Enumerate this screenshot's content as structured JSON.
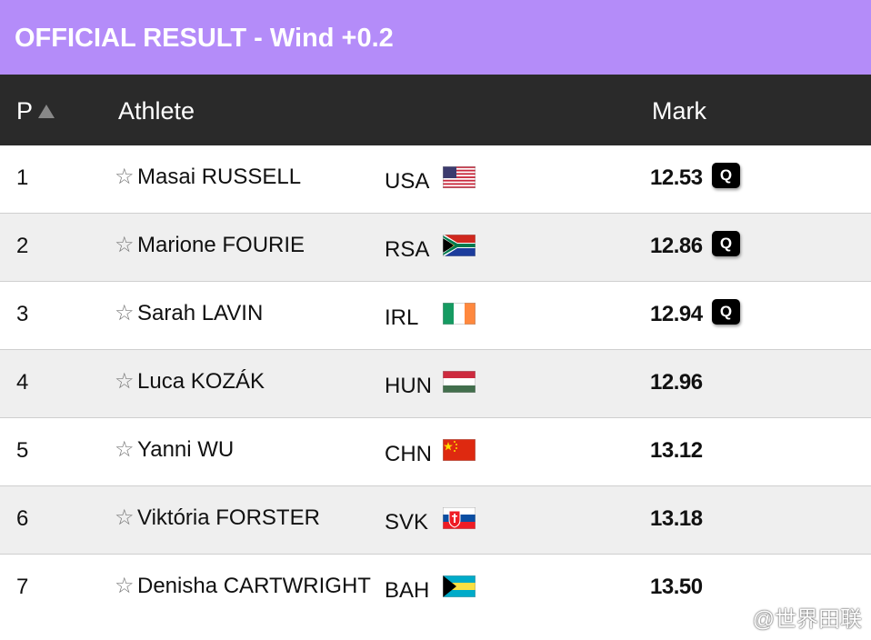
{
  "header": {
    "title": "OFFICIAL RESULT - Wind +0.2"
  },
  "table": {
    "columns": [
      "P",
      "Athlete",
      "Mark"
    ],
    "rows": [
      {
        "place": "1",
        "athlete": "Masai RUSSELL",
        "country": "USA",
        "mark": "12.53",
        "qualifier": "Q"
      },
      {
        "place": "2",
        "athlete": "Marione FOURIE",
        "country": "RSA",
        "mark": "12.86",
        "qualifier": "Q"
      },
      {
        "place": "3",
        "athlete": "Sarah LAVIN",
        "country": "IRL",
        "mark": "12.94",
        "qualifier": "Q"
      },
      {
        "place": "4",
        "athlete": "Luca KOZÁK",
        "country": "HUN",
        "mark": "12.96"
      },
      {
        "place": "5",
        "athlete": "Yanni WU",
        "country": "CHN",
        "mark": "13.12"
      },
      {
        "place": "6",
        "athlete": "Viktória FORSTER",
        "country": "SVK",
        "mark": "13.18"
      },
      {
        "place": "7",
        "athlete": "Denisha CARTWRIGHT",
        "country": "BAH",
        "mark": "13.50"
      }
    ]
  },
  "watermark": "@世界田联"
}
